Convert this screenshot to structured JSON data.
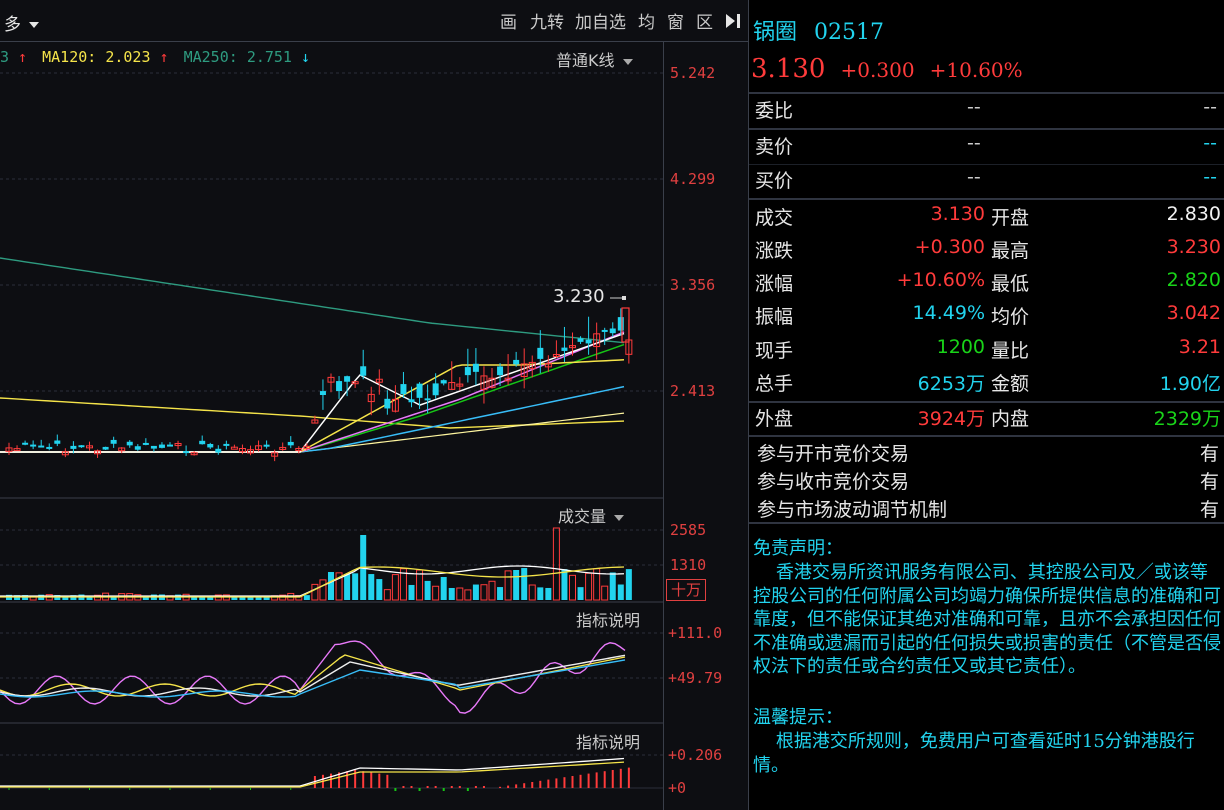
{
  "toolbar": {
    "dropdown_label": "多",
    "items": [
      "画",
      "九转",
      "加自选",
      "均",
      "窗",
      "区"
    ]
  },
  "ma_bar": {
    "partial_prefix": "3",
    "ma120_label": "MA120:",
    "ma120_value": "2.023",
    "ma250_label": "MA250:",
    "ma250_value": "2.751",
    "ma120_dir": "up",
    "ma250_dir": "down"
  },
  "chart_type_select": "普通K线",
  "price_axis": [
    "5.242",
    "4.299",
    "3.356",
    "2.413"
  ],
  "high_marker": "3.230",
  "volume_pane": {
    "title": "成交量",
    "axis": [
      "2585",
      "1310"
    ],
    "unit": "十万"
  },
  "indicator1": {
    "title": "指标说明",
    "axis": [
      "+111.0",
      "+49.79"
    ]
  },
  "indicator2": {
    "title": "指标说明",
    "axis": [
      "+0.206",
      "+0"
    ]
  },
  "stock": {
    "name": "锅圈",
    "code": "02517",
    "price": "3.130",
    "change": "+0.300",
    "change_pct": "+10.60%"
  },
  "order_book": {
    "weibi_label": "委比",
    "weibi_v1": "--",
    "weibi_v2": "--",
    "sell_label": "卖价",
    "sell_v1": "--",
    "sell_v2": "--",
    "buy_label": "买价",
    "buy_v1": "--",
    "buy_v2": "--"
  },
  "quote": [
    {
      "l1": "成交",
      "v1": "3.130",
      "c1": "red",
      "l2": "开盘",
      "v2": "2.830",
      "c2": "white"
    },
    {
      "l1": "涨跌",
      "v1": "+0.300",
      "c1": "red",
      "l2": "最高",
      "v2": "3.230",
      "c2": "red"
    },
    {
      "l1": "涨幅",
      "v1": "+10.60%",
      "c1": "red",
      "l2": "最低",
      "v2": "2.820",
      "c2": "green"
    },
    {
      "l1": "振幅",
      "v1": "14.49%",
      "c1": "cyan",
      "l2": "均价",
      "v2": "3.042",
      "c2": "red"
    },
    {
      "l1": "现手",
      "v1": "1200",
      "c1": "green",
      "l2": "量比",
      "v2": "3.21",
      "c2": "red"
    },
    {
      "l1": "总手",
      "v1": "6253万",
      "c1": "cyan",
      "l2": "金额",
      "v2": "1.90亿",
      "c2": "cyan"
    }
  ],
  "outer_inner": {
    "l1": "外盘",
    "v1": "3924万",
    "l2": "内盘",
    "v2": "2329万"
  },
  "auctions": [
    {
      "label": "参与开市竞价交易",
      "value": "有"
    },
    {
      "label": "参与收市竞价交易",
      "value": "有"
    },
    {
      "label": "参与市场波动调节机制",
      "value": "有"
    }
  ],
  "disclaimer": {
    "title": "免责声明：",
    "body": "    香港交易所资讯服务有限公司、其控股公司及／或该等控股公司的任何附属公司均竭力确保所提供信息的准确和可靠度，但不能保证其绝对准确和可靠，且亦不会承担因任何不准确或遗漏而引起的任何损失或损害的责任（不管是否侵权法下的责任或合约责任又或其它责任）。",
    "tip_title": "温馨提示：",
    "tip_body": "    根据港交所规则，免费用户可查看延时15分钟港股行情。"
  },
  "colors": {
    "up": "#ff3b3b",
    "down": "#22d3ee",
    "ma_white": "#ffffff",
    "ma_yellow": "#f5e44a",
    "ma_pink": "#e879f9",
    "ma_green": "#16c416",
    "ma_blue": "#38bdf8",
    "ma120_color": "#f5e44a",
    "ma250_color": "#2e9b80"
  }
}
